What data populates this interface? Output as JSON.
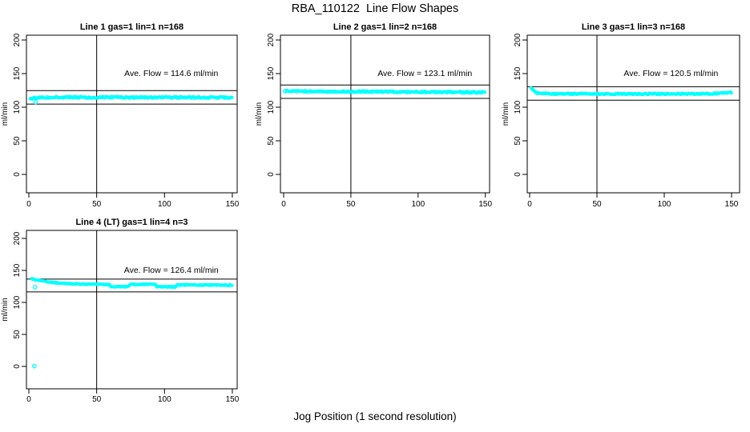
{
  "page_title": "RBA_110122  Line Flow Shapes",
  "bottom_axis_label": "Jog Position (1 second resolution)",
  "colors": {
    "points": "#00FFFF",
    "axis": "#000000",
    "text": "#000000",
    "background": "#FFFFFF"
  },
  "chart_data": {
    "type": "scatter",
    "shared": {
      "xlabel": "Jog Position (1 second resolution)",
      "ylabel": "ml/min",
      "xticks": [
        0,
        50,
        100,
        150
      ],
      "yticks": [
        0,
        50,
        100,
        150,
        200
      ],
      "xlim": [
        -2,
        155
      ],
      "ylim": [
        -25,
        210
      ],
      "vline_x": 50,
      "grid": false,
      "legend": "none",
      "point_shape": "open-circle",
      "point_color": "#00FFFF"
    },
    "panels": [
      {
        "title": "Line 1 gas=1 lin=1 n=168",
        "line_label": "Line 1",
        "gas": 1,
        "lin": 1,
        "n": 168,
        "ave_flow": 114.6,
        "annotation": "Ave. Flow =  114.6  ml/min",
        "annotation_at": {
          "x": 105,
          "y": 150
        },
        "ref_lines": [
          124.6,
          104.6
        ],
        "band_anchors": [
          [
            1,
            112.0
          ],
          [
            2,
            113.2
          ],
          [
            5,
            114.2
          ],
          [
            15,
            114.7
          ],
          [
            60,
            114.6
          ],
          [
            150,
            114.5
          ]
        ],
        "outliers": [
          [
            5,
            107.5
          ]
        ],
        "noise": 1.3
      },
      {
        "title": "Line 2 gas=1 lin=2 n=168",
        "line_label": "Line 2",
        "gas": 1,
        "lin": 2,
        "n": 168,
        "ave_flow": 123.1,
        "annotation": "Ave. Flow =  123.1  ml/min",
        "annotation_at": {
          "x": 105,
          "y": 150
        },
        "ref_lines": [
          133.1,
          113.1
        ],
        "band_anchors": [
          [
            2,
            124.0
          ],
          [
            20,
            123.5
          ],
          [
            80,
            123.0
          ],
          [
            150,
            122.1
          ]
        ],
        "outliers": [
          [
            1,
            123.8
          ]
        ],
        "noise": 1.2
      },
      {
        "title": "Line 3 gas=1 lin=3 n=168",
        "line_label": "Line 3",
        "gas": 1,
        "lin": 3,
        "n": 168,
        "ave_flow": 120.5,
        "annotation": "Ave. Flow =  120.5  ml/min",
        "annotation_at": {
          "x": 105,
          "y": 150
        },
        "ref_lines": [
          130.5,
          110.5
        ],
        "band_anchors": [
          [
            1,
            128.3
          ],
          [
            2,
            126.5
          ],
          [
            3,
            124.2
          ],
          [
            5,
            121.6
          ],
          [
            8,
            120.4
          ],
          [
            20,
            119.9
          ],
          [
            60,
            119.7
          ],
          [
            120,
            119.9
          ],
          [
            140,
            120.4
          ],
          [
            148,
            121.2
          ],
          [
            150,
            121.7
          ]
        ],
        "outliers": [],
        "noise": 1.0
      },
      {
        "title": "Line 4 (LT) gas=1 lin=4 n=3",
        "line_label": "Line 4 (LT)",
        "gas": 1,
        "lin": 4,
        "n": 3,
        "ave_flow": 126.4,
        "annotation": "Ave. Flow =  126.4  ml/min",
        "annotation_at": {
          "x": 105,
          "y": 150
        },
        "ref_lines": [
          136.4,
          116.4
        ],
        "band_anchors": [
          [
            2,
            136.8
          ],
          [
            3,
            136.2
          ],
          [
            6,
            134.6
          ],
          [
            10,
            133.2
          ],
          [
            16,
            131.5
          ],
          [
            24,
            130.0
          ],
          [
            32,
            129.2
          ],
          [
            42,
            128.5
          ],
          [
            52,
            128.1
          ],
          [
            59,
            127.9
          ],
          [
            60.5,
            124.8
          ],
          [
            73,
            124.5
          ],
          [
            74.5,
            128.1
          ],
          [
            93,
            128.2
          ],
          [
            94.5,
            124.6
          ],
          [
            108,
            124.2
          ],
          [
            109.5,
            127.4
          ],
          [
            125,
            127.3
          ],
          [
            150,
            126.9
          ]
        ],
        "outliers": [
          [
            4.5,
            123.8
          ],
          [
            4,
            0.5
          ]
        ],
        "noise": 0.7
      }
    ]
  }
}
